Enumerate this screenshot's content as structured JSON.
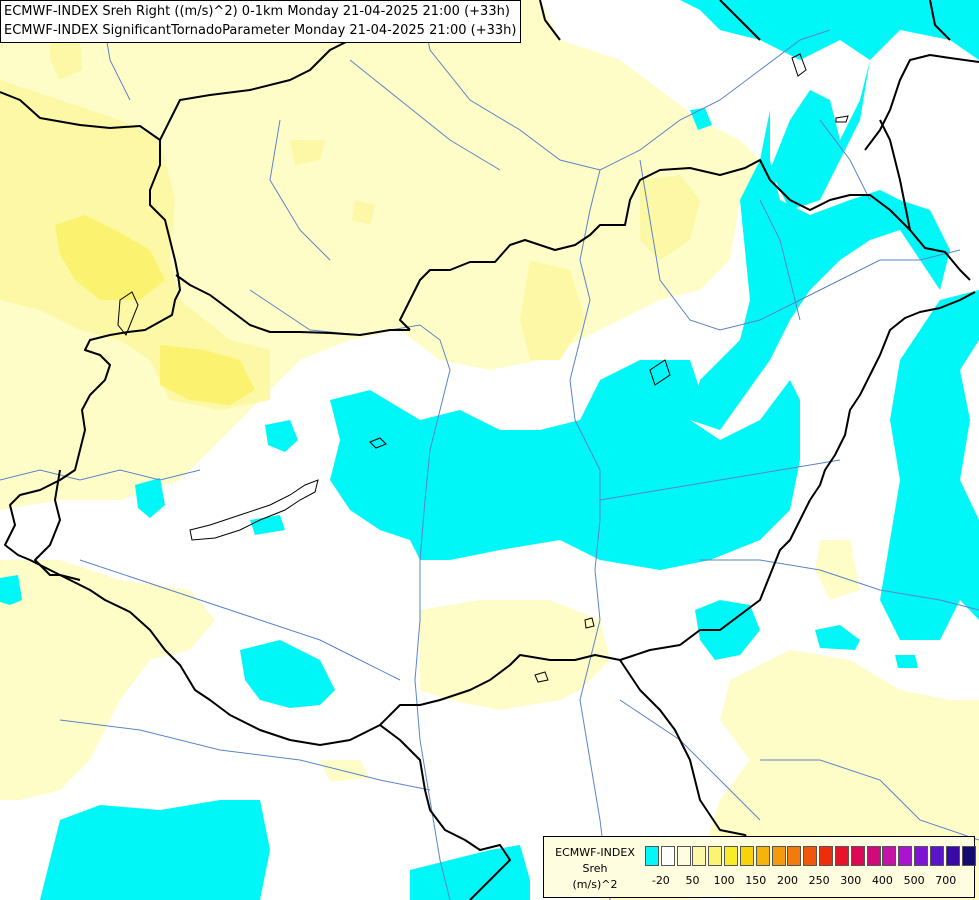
{
  "title_lines": [
    "ECMWF-INDEX Sreh Right ((m/s)^2) 0-1km Monday 21-04-2025 21:00 (+33h)",
    "ECMWF-INDEX SignificantTornadoParameter Monday 21-04-2025 21:00 (+33h)"
  ],
  "colors": {
    "background": "#ffffff",
    "pale_yellow": "#fefdc8",
    "yellow": "#fcf8a5",
    "bright_yellow": "#fbf370",
    "cyan": "#00f7f8",
    "border": "#000000",
    "river": "#5a84c8"
  },
  "legend": {
    "label_lines": [
      "ECMWF-INDEX",
      "Sreh",
      "(m/s)^2"
    ],
    "swatches": [
      "#00f7f8",
      "#ffffff",
      "#fefde2",
      "#fcf8a5",
      "#fbf472",
      "#f8ec2a",
      "#f5d40c",
      "#f5b40c",
      "#f59a0c",
      "#f57a0c",
      "#f2560a",
      "#ee2e0a",
      "#e8122a",
      "#dc0a54",
      "#d00a7c",
      "#c414a8",
      "#a814d0",
      "#8014d6",
      "#5a14cc",
      "#3a0aa8",
      "#140a72"
    ],
    "ticks": [
      "-20",
      "50",
      "100",
      "150",
      "200",
      "250",
      "300",
      "400",
      "500",
      "700"
    ]
  }
}
